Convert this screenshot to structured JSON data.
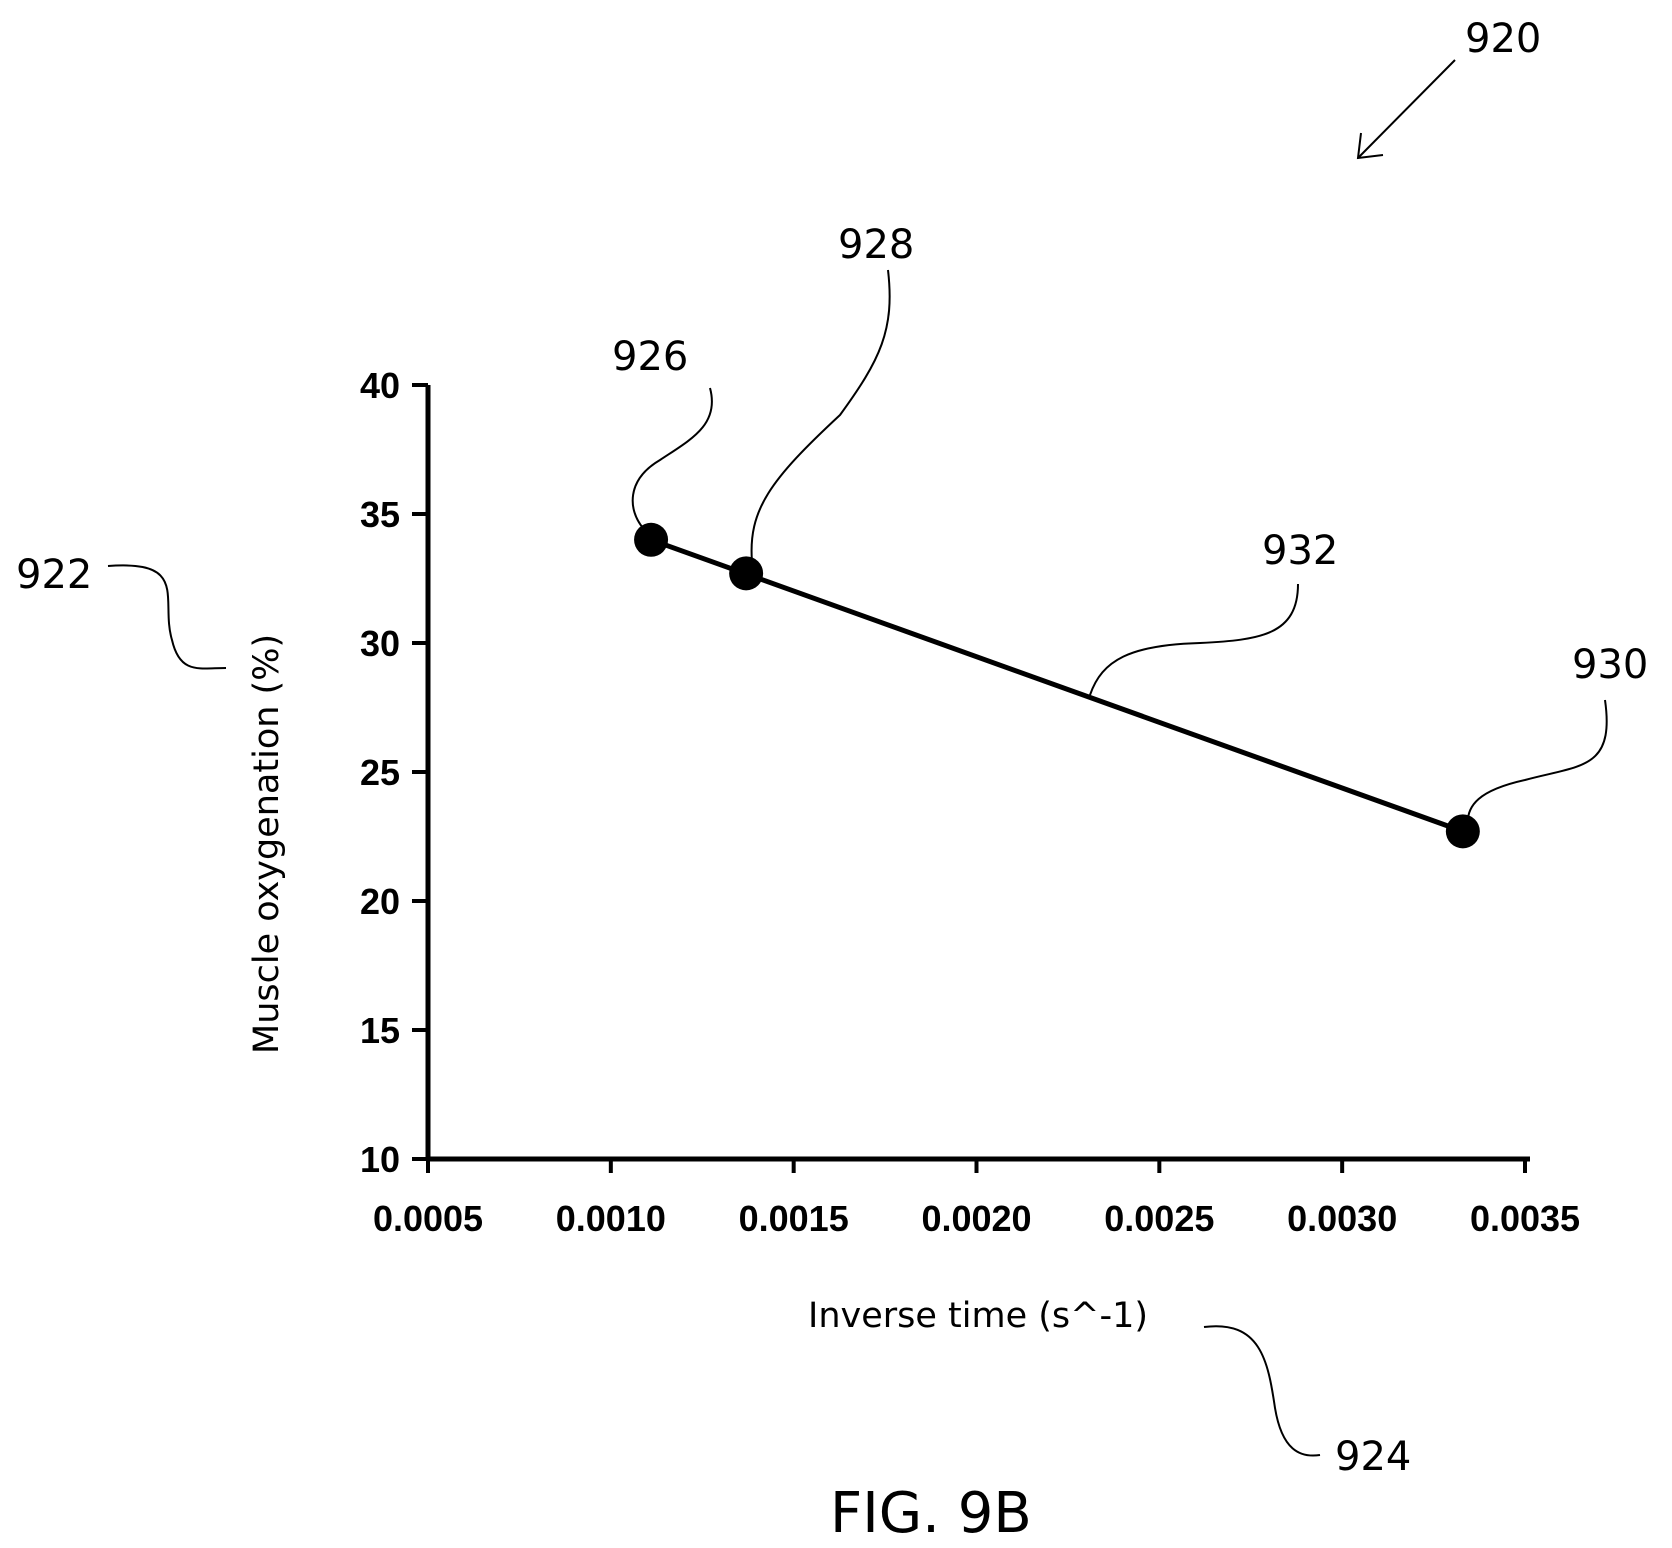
{
  "chart_data": {
    "type": "scatter",
    "title": "",
    "xlabel": "Inverse time (s^-1)",
    "ylabel": "Muscle oxygenation (%)",
    "xlim": [
      0.0005,
      0.0035
    ],
    "ylim": [
      10,
      40
    ],
    "x_ticks": [
      "0.0005",
      "0.0010",
      "0.0015",
      "0.0020",
      "0.0025",
      "0.0030",
      "0.0035"
    ],
    "y_ticks": [
      "10",
      "15",
      "20",
      "25",
      "30",
      "35",
      "40"
    ],
    "grid": false,
    "points": [
      {
        "x": 0.00111,
        "y": 34.0,
        "ref": "926"
      },
      {
        "x": 0.00137,
        "y": 32.7,
        "ref": "928"
      },
      {
        "x": 0.00333,
        "y": 22.7,
        "ref": "930"
      }
    ],
    "line": {
      "ref": "932",
      "from": {
        "x": 0.00111,
        "y": 34.0
      },
      "to": {
        "x": 0.00333,
        "y": 22.7
      }
    }
  },
  "references": {
    "figure": "920",
    "y_axis": "922",
    "x_axis": "924",
    "line": "932"
  },
  "caption": "FIG. 9B"
}
